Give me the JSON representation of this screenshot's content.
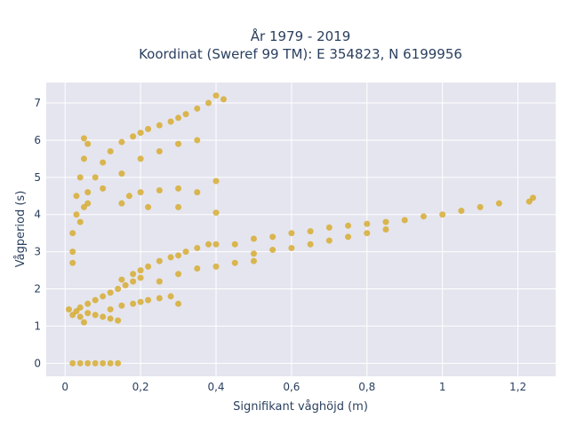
{
  "chart_data": {
    "type": "scatter",
    "title_line1": "År 1979 - 2019",
    "title_line2": "Koordinat (Sweref 99 TM): E 354823, N 6199956",
    "xlabel": "Signifikant våghöjd (m)",
    "ylabel": "Vågperiod (s)",
    "xlim": [
      -0.05,
      1.3
    ],
    "ylim": [
      -0.35,
      7.55
    ],
    "x_tick_values": [
      0,
      0.2,
      0.4,
      0.6,
      0.8,
      1,
      1.2
    ],
    "x_tick_labels": [
      "0",
      "0,2",
      "0,4",
      "0,6",
      "0,8",
      "1",
      "1,2"
    ],
    "y_tick_values": [
      0,
      1,
      2,
      3,
      4,
      5,
      6,
      7
    ],
    "y_tick_labels": [
      "0",
      "1",
      "2",
      "3",
      "4",
      "5",
      "6",
      "7"
    ],
    "grid": true,
    "marker_color": "#d4a418",
    "plot_background": "#e5e5ef",
    "series": [
      {
        "values": [
          [
            0.02,
            0.0
          ],
          [
            0.04,
            0.0
          ],
          [
            0.06,
            0.0
          ],
          [
            0.08,
            0.0
          ],
          [
            0.1,
            0.0
          ],
          [
            0.12,
            0.0
          ],
          [
            0.14,
            0.0
          ],
          [
            0.01,
            1.45
          ],
          [
            0.02,
            1.3
          ],
          [
            0.03,
            1.4
          ],
          [
            0.04,
            1.25
          ],
          [
            0.05,
            1.1
          ],
          [
            0.06,
            1.35
          ],
          [
            0.08,
            1.3
          ],
          [
            0.1,
            1.25
          ],
          [
            0.12,
            1.2
          ],
          [
            0.14,
            1.15
          ],
          [
            0.04,
            1.5
          ],
          [
            0.06,
            1.6
          ],
          [
            0.08,
            1.7
          ],
          [
            0.1,
            1.8
          ],
          [
            0.12,
            1.9
          ],
          [
            0.14,
            2.0
          ],
          [
            0.16,
            2.1
          ],
          [
            0.18,
            2.2
          ],
          [
            0.2,
            2.3
          ],
          [
            0.12,
            1.45
          ],
          [
            0.15,
            1.55
          ],
          [
            0.18,
            1.6
          ],
          [
            0.2,
            1.65
          ],
          [
            0.22,
            1.7
          ],
          [
            0.25,
            1.75
          ],
          [
            0.28,
            1.8
          ],
          [
            0.3,
            1.6
          ],
          [
            0.15,
            2.25
          ],
          [
            0.18,
            2.4
          ],
          [
            0.2,
            2.5
          ],
          [
            0.22,
            2.6
          ],
          [
            0.25,
            2.75
          ],
          [
            0.28,
            2.85
          ],
          [
            0.3,
            2.9
          ],
          [
            0.32,
            3.0
          ],
          [
            0.35,
            3.1
          ],
          [
            0.38,
            3.2
          ],
          [
            0.4,
            3.2
          ],
          [
            0.25,
            2.2
          ],
          [
            0.3,
            2.4
          ],
          [
            0.35,
            2.55
          ],
          [
            0.4,
            2.6
          ],
          [
            0.45,
            2.7
          ],
          [
            0.5,
            2.75
          ],
          [
            0.45,
            3.2
          ],
          [
            0.5,
            3.35
          ],
          [
            0.55,
            3.4
          ],
          [
            0.6,
            3.5
          ],
          [
            0.65,
            3.55
          ],
          [
            0.7,
            3.65
          ],
          [
            0.75,
            3.7
          ],
          [
            0.8,
            3.75
          ],
          [
            0.85,
            3.8
          ],
          [
            0.5,
            2.95
          ],
          [
            0.55,
            3.05
          ],
          [
            0.6,
            3.1
          ],
          [
            0.65,
            3.2
          ],
          [
            0.7,
            3.3
          ],
          [
            0.75,
            3.4
          ],
          [
            0.8,
            3.5
          ],
          [
            0.85,
            3.6
          ],
          [
            0.9,
            3.85
          ],
          [
            0.95,
            3.95
          ],
          [
            1.0,
            4.0
          ],
          [
            1.05,
            4.1
          ],
          [
            1.1,
            4.2
          ],
          [
            1.15,
            4.3
          ],
          [
            1.23,
            4.35
          ],
          [
            1.24,
            4.45
          ],
          [
            0.02,
            2.7
          ],
          [
            0.02,
            3.0
          ],
          [
            0.02,
            3.5
          ],
          [
            0.03,
            4.0
          ],
          [
            0.03,
            4.5
          ],
          [
            0.04,
            5.0
          ],
          [
            0.05,
            5.5
          ],
          [
            0.06,
            5.9
          ],
          [
            0.05,
            6.05
          ],
          [
            0.04,
            3.8
          ],
          [
            0.05,
            4.2
          ],
          [
            0.06,
            4.6
          ],
          [
            0.08,
            5.0
          ],
          [
            0.1,
            5.4
          ],
          [
            0.12,
            5.7
          ],
          [
            0.15,
            5.95
          ],
          [
            0.18,
            6.1
          ],
          [
            0.2,
            6.2
          ],
          [
            0.22,
            6.3
          ],
          [
            0.25,
            6.4
          ],
          [
            0.28,
            6.5
          ],
          [
            0.3,
            6.6
          ],
          [
            0.32,
            6.7
          ],
          [
            0.35,
            6.85
          ],
          [
            0.38,
            7.0
          ],
          [
            0.4,
            7.2
          ],
          [
            0.42,
            7.1
          ],
          [
            0.06,
            4.3
          ],
          [
            0.1,
            4.7
          ],
          [
            0.15,
            5.1
          ],
          [
            0.2,
            5.5
          ],
          [
            0.25,
            5.7
          ],
          [
            0.3,
            5.9
          ],
          [
            0.35,
            6.0
          ],
          [
            0.17,
            4.5
          ],
          [
            0.2,
            4.6
          ],
          [
            0.25,
            4.65
          ],
          [
            0.3,
            4.7
          ],
          [
            0.35,
            4.6
          ],
          [
            0.4,
            4.9
          ],
          [
            0.22,
            4.2
          ],
          [
            0.3,
            4.2
          ],
          [
            0.4,
            4.05
          ],
          [
            0.15,
            4.3
          ]
        ]
      }
    ]
  }
}
